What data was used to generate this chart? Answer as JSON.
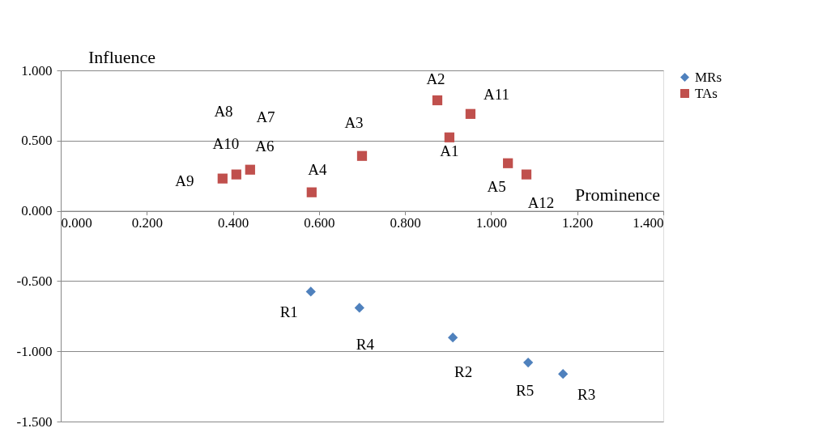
{
  "chart_data": {
    "type": "scatter",
    "xlabel": "Prominence",
    "ylabel": "Influence",
    "xlim": [
      0,
      1.4
    ],
    "ylim": [
      -1.5,
      1.0
    ],
    "xticks": [
      {
        "value": 0,
        "label": "0.000"
      },
      {
        "value": 0.2,
        "label": "0.200"
      },
      {
        "value": 0.4,
        "label": "0.400"
      },
      {
        "value": 0.6,
        "label": "0.600"
      },
      {
        "value": 0.8,
        "label": "0.800"
      },
      {
        "value": 1.0,
        "label": "1.000"
      },
      {
        "value": 1.2,
        "label": "1.200"
      },
      {
        "value": 1.4,
        "label": "1.400"
      }
    ],
    "yticks": [
      {
        "value": -1.5,
        "label": "-1.500"
      },
      {
        "value": -1.0,
        "label": "-1.000"
      },
      {
        "value": -0.5,
        "label": "-0.500"
      },
      {
        "value": 0,
        "label": "0.000"
      },
      {
        "value": 0.5,
        "label": "0.500"
      },
      {
        "value": 1.0,
        "label": "1.000"
      }
    ],
    "grid": "y",
    "legend": "right",
    "series": [
      {
        "name": "MRs",
        "color": "#4f81bd",
        "marker": "diamond",
        "x": [
          0.581,
          0.694,
          0.911,
          1.086,
          1.167
        ],
        "values": [
          -0.575,
          -0.69,
          -0.902,
          -1.08,
          -1.161
        ]
      },
      {
        "name": "TAs",
        "color": "#c0504d",
        "marker": "square",
        "x": [
          0.376,
          0.408,
          0.44,
          0.583,
          0.7,
          0.875,
          0.903,
          0.952,
          1.039,
          1.082
        ],
        "values": [
          0.23,
          0.259,
          0.293,
          0.132,
          0.391,
          0.787,
          0.523,
          0.69,
          0.339,
          0.259
        ]
      }
    ],
    "annotations": [
      {
        "text": "A2",
        "x": 0.875,
        "y": 0.787
      },
      {
        "text": "A11",
        "x": 0.952,
        "y": 0.69
      },
      {
        "text": "A3",
        "x": 0.7,
        "y": 0.391
      },
      "A8",
      "A7",
      {
        "text": "A10",
        "x": 0.408,
        "y": 0.259
      },
      {
        "text": "A6",
        "x": 0.44,
        "y": 0.293
      },
      {
        "text": "A9",
        "x": 0.376,
        "y": 0.23
      },
      {
        "text": "A4",
        "x": 0.583,
        "y": 0.132
      },
      {
        "text": "A1",
        "x": 0.903,
        "y": 0.523
      },
      {
        "text": "A5",
        "x": 1.039,
        "y": 0.339
      },
      {
        "text": "A12",
        "x": 1.082,
        "y": 0.259
      },
      {
        "text": "R1",
        "x": 0.581,
        "y": -0.575
      },
      {
        "text": "R4",
        "x": 0.694,
        "y": -0.69
      },
      {
        "text": "R2",
        "x": 0.911,
        "y": -0.902
      },
      {
        "text": "R5",
        "x": 1.086,
        "y": -1.08
      },
      {
        "text": "R3",
        "x": 1.167,
        "y": -1.161
      }
    ]
  }
}
